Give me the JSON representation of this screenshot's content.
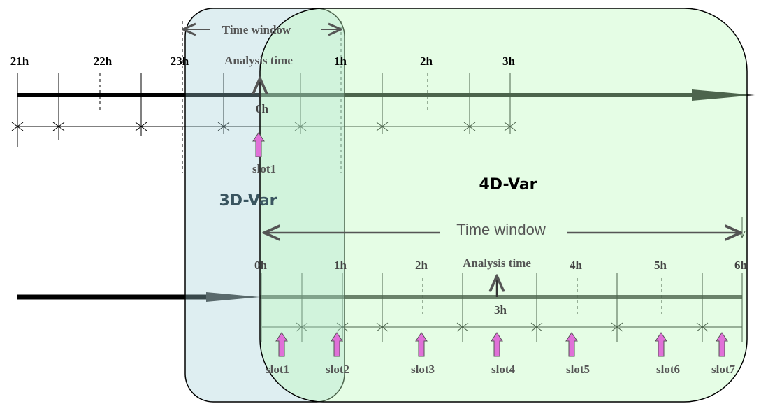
{
  "top": {
    "time_window": "Time window",
    "hours": [
      "21h",
      "22h",
      "23h",
      "1h",
      "2h",
      "3h"
    ],
    "analysis_time": "Analysis time",
    "analysis_hour": "0h",
    "slots": [
      "slot1"
    ]
  },
  "methods": {
    "three_d": "3D-Var",
    "four_d": "4D-Var"
  },
  "bottom": {
    "time_window": "Time window",
    "hours": [
      "0h",
      "1h",
      "2h",
      "4h",
      "5h",
      "6h"
    ],
    "analysis_time": "Analysis time",
    "analysis_hour": "3h",
    "slots": [
      "slot1",
      "slot2",
      "slot3",
      "slot4",
      "slot5",
      "slot6",
      "slot7"
    ]
  }
}
